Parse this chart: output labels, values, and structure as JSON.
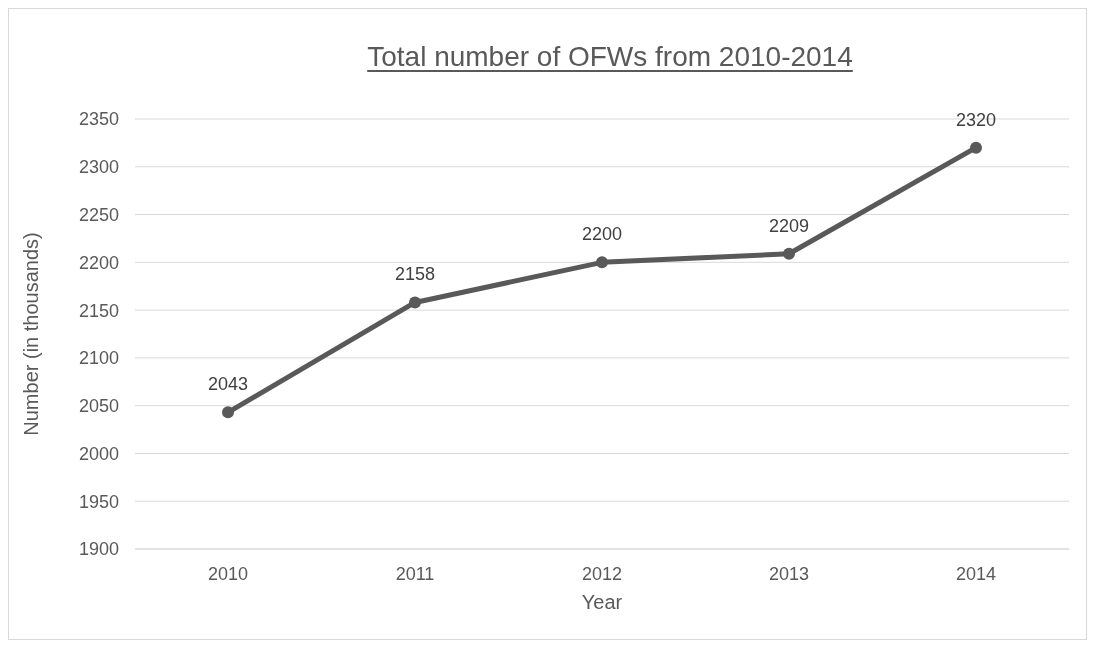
{
  "chart_data": {
    "type": "line",
    "title": "Total number of OFWs from 2010-2014",
    "xlabel": "Year",
    "ylabel": "Number (in thousands)",
    "categories": [
      "2010",
      "2011",
      "2012",
      "2013",
      "2014"
    ],
    "series": [
      {
        "color": "#595959",
        "values": [
          2043,
          2158,
          2200,
          2209,
          2320
        ]
      }
    ],
    "ylim": [
      1900,
      2350
    ],
    "yticks": [
      1900,
      1950,
      2000,
      2050,
      2100,
      2150,
      2200,
      2250,
      2300,
      2350
    ],
    "grid": "y",
    "marker": "circle",
    "line_style": "solid",
    "data_labels": true
  }
}
